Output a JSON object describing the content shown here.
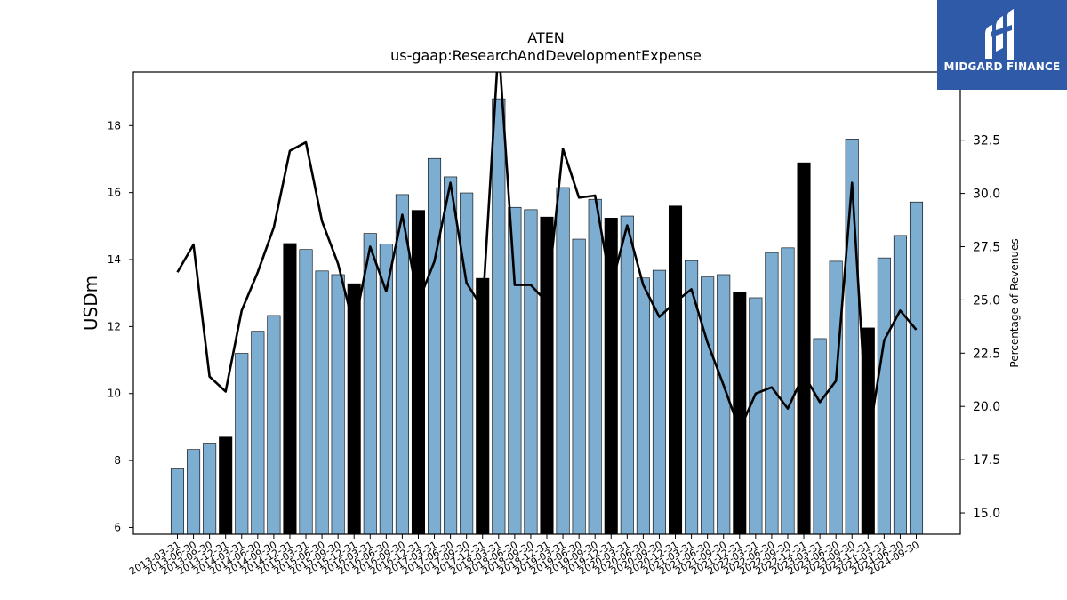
{
  "chart_data": {
    "type": "bar",
    "title": "ATEN",
    "subtitle": "us-gaap:ResearchAndDevelopmentExpense",
    "ylabel": "USDm",
    "y2label": "Percentage of Revenues",
    "ylim": [
      5.8,
      19.6
    ],
    "y2lim": [
      14.0,
      35.7
    ],
    "yticks": [
      6,
      8,
      10,
      12,
      14,
      16,
      18
    ],
    "y2ticks": [
      15.0,
      17.5,
      20.0,
      22.5,
      25.0,
      27.5,
      30.0,
      32.5
    ],
    "categories": [
      "2013-03-31",
      "2013-06-30",
      "2013-09-30",
      "2013-12-31",
      "2014-03-31",
      "2014-06-30",
      "2014-09-30",
      "2014-12-31",
      "2015-03-31",
      "2015-06-30",
      "2015-09-30",
      "2015-12-31",
      "2016-03-31",
      "2016-06-30",
      "2016-09-30",
      "2016-12-31",
      "2017-03-31",
      "2017-06-30",
      "2017-09-30",
      "2017-12-31",
      "2018-03-31",
      "2018-06-30",
      "2018-09-30",
      "2018-12-31",
      "2019-03-31",
      "2019-06-30",
      "2019-09-30",
      "2019-12-31",
      "2020-03-31",
      "2020-06-30",
      "2020-09-30",
      "2020-12-31",
      "2021-03-31",
      "2021-06-30",
      "2021-09-30",
      "2021-12-31",
      "2022-03-31",
      "2022-06-30",
      "2022-09-30",
      "2022-12-31",
      "2023-03-31",
      "2023-06-30",
      "2023-09-30",
      "2023-12-31",
      "2024-03-31",
      "2024-06-30",
      "2024-09-30"
    ],
    "series": [
      {
        "type": "bar",
        "values": [
          7.75,
          8.33,
          8.52,
          8.7,
          11.2,
          11.86,
          12.33,
          14.48,
          14.3,
          13.66,
          13.55,
          13.28,
          14.78,
          14.47,
          15.94,
          15.47,
          17.02,
          16.47,
          15.99,
          13.44,
          18.8,
          15.56,
          15.49,
          15.27,
          16.15,
          14.61,
          15.8,
          15.24,
          15.3,
          13.45,
          13.68,
          15.6,
          13.97,
          13.48,
          13.55,
          13.02,
          12.86,
          14.21,
          14.35,
          16.89,
          11.64,
          13.95,
          17.6,
          11.96,
          14.05,
          14.72,
          15.72
        ],
        "highlight_color": "#000000",
        "color": "#7eadd2",
        "highlight_indices": [
          3,
          7,
          11,
          15,
          19,
          23,
          27,
          31,
          35,
          39,
          43
        ]
      },
      {
        "type": "line",
        "axis": "right",
        "color": "#000000",
        "values": [
          26.3,
          27.6,
          21.4,
          20.7,
          24.5,
          26.3,
          28.4,
          32.0,
          32.4,
          28.7,
          26.7,
          23.7,
          27.5,
          25.4,
          29.0,
          24.9,
          26.8,
          30.5,
          25.8,
          24.6,
          37.0,
          25.7,
          25.7,
          24.9,
          32.1,
          29.8,
          29.9,
          25.6,
          28.5,
          25.7,
          24.2,
          24.9,
          25.5,
          23.0,
          21.0,
          18.9,
          20.6,
          20.9,
          19.9,
          21.5,
          20.2,
          21.2,
          30.5,
          18.3,
          23.1,
          24.5,
          23.6
        ]
      }
    ]
  },
  "logo": {
    "text": "MIDGARD FINANCE"
  }
}
